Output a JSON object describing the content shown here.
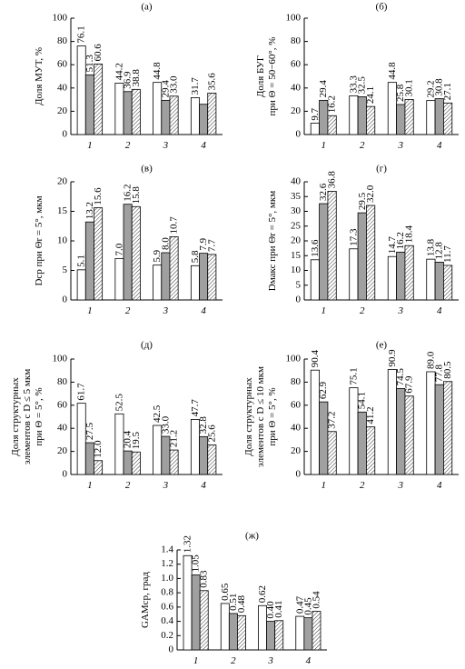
{
  "chart_data": [
    {
      "type": "bar",
      "label": "(а)",
      "ylabel": [
        "Доля МУТ, %"
      ],
      "categories": [
        "1",
        "2",
        "3",
        "4"
      ],
      "ylim": [
        0,
        100
      ],
      "yticks": [
        0,
        20,
        40,
        60,
        80,
        100
      ],
      "series": [
        {
          "color": "#ffffff",
          "values": [
            76.1,
            44.2,
            44.8,
            31.7
          ],
          "value_labels": [
            "76.1",
            "44.2",
            "44.8",
            "31.7"
          ]
        },
        {
          "color": "#a0a0a0",
          "values": [
            51.3,
            36.9,
            29.4,
            26
          ],
          "value_labels": [
            "51.3",
            "36.9",
            "29.4",
            null
          ]
        },
        {
          "color": "#ffffff",
          "hatch": true,
          "values": [
            60.6,
            38.8,
            33.0,
            35.6
          ],
          "value_labels": [
            "60.6",
            "38.8",
            "33.0",
            "35.6"
          ]
        }
      ]
    },
    {
      "type": "bar",
      "label": "(б)",
      "ylabel": [
        "Доля БУГ",
        "при Θ = 50−60°, %"
      ],
      "categories": [
        "1",
        "2",
        "3",
        "4"
      ],
      "ylim": [
        0,
        100
      ],
      "yticks": [
        0,
        20,
        40,
        60,
        80,
        100
      ],
      "series": [
        {
          "color": "#ffffff",
          "values": [
            9.7,
            33.3,
            44.8,
            29.2
          ],
          "value_labels": [
            "9.7",
            "33.3",
            "44.8",
            "29.2"
          ]
        },
        {
          "color": "#a0a0a0",
          "values": [
            29.4,
            32.5,
            25.8,
            30.8
          ],
          "value_labels": [
            "29.4",
            "32.5",
            "25.8",
            "30.8"
          ]
        },
        {
          "color": "#ffffff",
          "hatch": true,
          "values": [
            16.2,
            24.1,
            30.1,
            27.1
          ],
          "value_labels": [
            "16.2",
            "24.1",
            "30.1",
            "27.1"
          ]
        }
      ]
    },
    {
      "type": "bar",
      "label": "(в)",
      "ylabel": [
        "Dср при Θr = 5°, мкм"
      ],
      "categories": [
        "1",
        "2",
        "3",
        "4"
      ],
      "ylim": [
        0,
        20
      ],
      "yticks": [
        0,
        5,
        10,
        15,
        20
      ],
      "series": [
        {
          "color": "#ffffff",
          "values": [
            5.1,
            7.0,
            5.9,
            5.8
          ],
          "value_labels": [
            "5.1",
            "7.0",
            "5.9",
            "5.8"
          ]
        },
        {
          "color": "#a0a0a0",
          "values": [
            13.2,
            16.2,
            8.0,
            7.9
          ],
          "value_labels": [
            "13.2",
            "16.2",
            "8.0",
            "7.9"
          ]
        },
        {
          "color": "#ffffff",
          "hatch": true,
          "values": [
            15.6,
            15.8,
            10.7,
            7.7
          ],
          "value_labels": [
            "15.6",
            "15.8",
            "10.7",
            "7.7"
          ]
        }
      ]
    },
    {
      "type": "bar",
      "label": "(г)",
      "ylabel": [
        "Dмакс при Θr = 5°, мкм"
      ],
      "categories": [
        "1",
        "2",
        "3",
        "4"
      ],
      "ylim": [
        0,
        40
      ],
      "yticks": [
        0,
        5,
        10,
        15,
        20,
        25,
        30,
        35,
        40
      ],
      "series": [
        {
          "color": "#ffffff",
          "values": [
            13.6,
            17.3,
            14.7,
            13.8
          ],
          "value_labels": [
            "13.6",
            "17.3",
            "14.7",
            "13.8"
          ]
        },
        {
          "color": "#a0a0a0",
          "values": [
            32.6,
            29.5,
            16.2,
            12.8
          ],
          "value_labels": [
            "32.6",
            "29.5",
            "16.2",
            "12.8"
          ]
        },
        {
          "color": "#ffffff",
          "hatch": true,
          "values": [
            36.8,
            32.0,
            18.4,
            11.7
          ],
          "value_labels": [
            "36.8",
            "32.0",
            "18.4",
            "11.7"
          ]
        }
      ]
    },
    {
      "type": "bar",
      "label": "(д)",
      "ylabel": [
        "Доля структурных",
        "элементов с D ≤ 5 мкм",
        "при Θ = 5°, %"
      ],
      "categories": [
        "1",
        "2",
        "3",
        "4"
      ],
      "ylim": [
        0,
        100
      ],
      "yticks": [
        0,
        20,
        40,
        60,
        80,
        100
      ],
      "series": [
        {
          "color": "#ffffff",
          "values": [
            61.7,
            52.5,
            42.5,
            47.7
          ],
          "value_labels": [
            "61.7",
            "52.5",
            "42.5",
            "47.7"
          ]
        },
        {
          "color": "#a0a0a0",
          "values": [
            27.5,
            20.4,
            33.0,
            32.8
          ],
          "value_labels": [
            "27.5",
            "20.4",
            "33.0",
            "32.8"
          ]
        },
        {
          "color": "#ffffff",
          "hatch": true,
          "values": [
            12.0,
            19.5,
            21.2,
            25.6
          ],
          "value_labels": [
            "12.0",
            "19.5",
            "21.2",
            "25.6"
          ]
        }
      ]
    },
    {
      "type": "bar",
      "label": "(е)",
      "ylabel": [
        "Доля структурных",
        "элементов с D ≤ 10 мкм",
        "при Θ = 5°, %"
      ],
      "categories": [
        "1",
        "2",
        "3",
        "4"
      ],
      "ylim": [
        0,
        100
      ],
      "yticks": [
        0,
        20,
        40,
        60,
        80,
        100
      ],
      "series": [
        {
          "color": "#ffffff",
          "values": [
            90.4,
            75.1,
            90.9,
            89.0
          ],
          "value_labels": [
            "90.4",
            "75.1",
            "90.9",
            "89.0"
          ]
        },
        {
          "color": "#a0a0a0",
          "values": [
            62.9,
            54.1,
            74.5,
            77.8
          ],
          "value_labels": [
            "62.9",
            "54.1",
            "74.5",
            "77.8"
          ]
        },
        {
          "color": "#ffffff",
          "hatch": true,
          "values": [
            37.2,
            41.2,
            67.9,
            80.5
          ],
          "value_labels": [
            "37.2",
            "41.2",
            "67.9",
            "80.5"
          ]
        }
      ]
    },
    {
      "type": "bar",
      "label": "(ж)",
      "ylabel": [
        "GAMср, град"
      ],
      "categories": [
        "1",
        "2",
        "3",
        "4"
      ],
      "ylim": [
        0,
        1.4
      ],
      "yticks": [
        0,
        0.2,
        0.4,
        0.6,
        0.8,
        {
          "value": 1,
          "label": "1.0"
        },
        1.2,
        1.4
      ],
      "series": [
        {
          "color": "#ffffff",
          "values": [
            1.32,
            0.65,
            0.62,
            0.47
          ],
          "value_labels": [
            "1.32",
            "0.65",
            "0.62",
            "0.47"
          ]
        },
        {
          "color": "#a0a0a0",
          "values": [
            1.05,
            0.51,
            0.4,
            0.45
          ],
          "value_labels": [
            "1.05",
            "0.51",
            "0.40",
            "0.45"
          ]
        },
        {
          "color": "#ffffff",
          "hatch": true,
          "values": [
            0.83,
            0.48,
            0.41,
            0.54
          ],
          "value_labels": [
            "0.83",
            "0.48",
            "0.41",
            "0.54"
          ]
        }
      ]
    }
  ]
}
